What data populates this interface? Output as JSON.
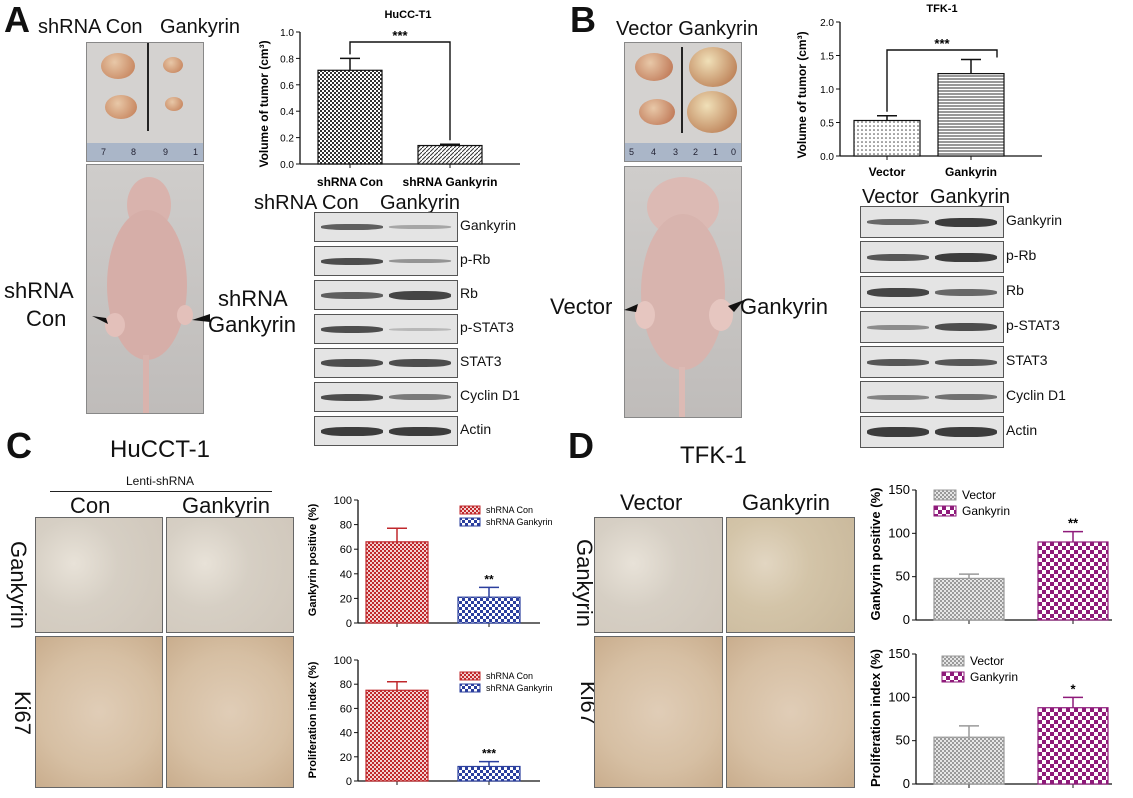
{
  "panels": {
    "A": {
      "label": "A",
      "photo_header_left": "shRNA Con",
      "photo_header_right": "Gankyrin",
      "ruler_numbers": [
        "7",
        "8",
        "9",
        "1"
      ],
      "mouse_left_label_1": "shRNA",
      "mouse_left_label_2": "Con",
      "mouse_right_label_1": "shRNA",
      "mouse_right_label_2": "Gankyrin",
      "blot_header_prefix": "shRNA",
      "blot_header_con": "Con",
      "blot_header_gank": "Gankyrin",
      "blot_rows": [
        "Gankyrin",
        "p-Rb",
        "Rb",
        "p-STAT3",
        "STAT3",
        "Cyclin D1",
        "Actin"
      ]
    },
    "B": {
      "label": "B",
      "photo_header": "Vector Gankyrin",
      "ruler_numbers": [
        "5",
        "4",
        "3",
        "2",
        "1",
        "0"
      ],
      "mouse_left_label": "Vector",
      "mouse_right_label": "Gankyrin",
      "blot_header_vector": "Vector",
      "blot_header_gank": "Gankyrin",
      "blot_rows": [
        "Gankyrin",
        "p-Rb",
        "Rb",
        "p-STAT3",
        "STAT3",
        "Cyclin D1",
        "Actin"
      ]
    },
    "C": {
      "label": "C",
      "title": "HuCCT-1",
      "group_label": "Lenti-shRNA",
      "col_con": "Con",
      "col_gank": "Gankyrin",
      "row_gank": "Gankyrin",
      "row_ki67": "Ki67"
    },
    "D": {
      "label": "D",
      "title": "TFK-1",
      "col_vector": "Vector",
      "col_gank": "Gankyrin",
      "row_gank": "Gankyrin",
      "row_ki67": "Ki67"
    }
  },
  "chart_data": [
    {
      "id": "A-volume",
      "type": "bar",
      "title": "HuCC-T1",
      "ylabel": "Volume of tumor (cm³)",
      "categories": [
        "shRNA Con",
        "shRNA Gankyrin"
      ],
      "values": [
        0.71,
        0.14
      ],
      "errors": [
        0.09,
        0.01
      ],
      "ylim": [
        0,
        1.0
      ],
      "yticks": [
        "0.0",
        "0.2",
        "0.4",
        "0.6",
        "0.8",
        "1.0"
      ],
      "significance": "***"
    },
    {
      "id": "B-volume",
      "type": "bar",
      "title": "TFK-1",
      "ylabel": "Volume of tumor (cm³)",
      "categories": [
        "Vector",
        "Gankyrin"
      ],
      "values": [
        0.53,
        1.23
      ],
      "errors": [
        0.07,
        0.21
      ],
      "ylim": [
        0,
        2.0
      ],
      "yticks": [
        "0.0",
        "0.5",
        "1.0",
        "1.5",
        "2.0"
      ],
      "significance": "***"
    },
    {
      "id": "C-gankyrin",
      "type": "bar",
      "ylabel": "Gankyrin positive (%)",
      "legend": [
        "shRNA Con",
        "shRNA Gankyrin"
      ],
      "values": [
        66,
        21
      ],
      "errors": [
        11,
        8
      ],
      "ylim": [
        0,
        100
      ],
      "yticks": [
        "0",
        "20",
        "40",
        "60",
        "80",
        "100"
      ],
      "significance": "**",
      "colors": [
        "#c0282c",
        "#2b3f9e"
      ]
    },
    {
      "id": "C-ki67",
      "type": "bar",
      "ylabel": "Proliferation index (%)",
      "legend": [
        "shRNA Con",
        "shRNA Gankyrin"
      ],
      "values": [
        75,
        12
      ],
      "errors": [
        7,
        4
      ],
      "ylim": [
        0,
        100
      ],
      "yticks": [
        "0",
        "20",
        "40",
        "60",
        "80",
        "100"
      ],
      "significance": "***",
      "colors": [
        "#c0282c",
        "#2b3f9e"
      ]
    },
    {
      "id": "D-gankyrin",
      "type": "bar",
      "ylabel": "Gankyrin positive (%)",
      "legend": [
        "Vector",
        "Gankyrin"
      ],
      "values": [
        48,
        90
      ],
      "errors": [
        5,
        12
      ],
      "ylim": [
        0,
        150
      ],
      "yticks": [
        "0",
        "50",
        "100",
        "150"
      ],
      "significance": "**",
      "colors": [
        "#9a9a9a",
        "#8e1a7a"
      ]
    },
    {
      "id": "D-ki67",
      "type": "bar",
      "ylabel": "Proliferation index (%)",
      "legend": [
        "Vector",
        "Gankyrin"
      ],
      "values": [
        54,
        88
      ],
      "errors": [
        13,
        12
      ],
      "ylim": [
        0,
        150
      ],
      "yticks": [
        "0",
        "50",
        "100",
        "150"
      ],
      "significance": "*",
      "colors": [
        "#9a9a9a",
        "#8e1a7a"
      ]
    }
  ]
}
